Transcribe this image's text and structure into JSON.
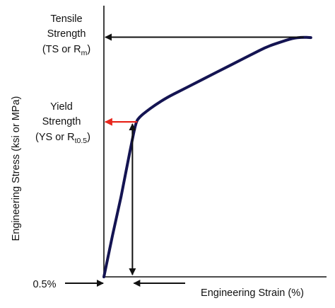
{
  "chart_data": {
    "type": "line",
    "title": "",
    "xlabel": "Engineering Strain (%)",
    "ylabel": "Engineering Stress (ksi or MPa)",
    "grid": false,
    "legend": "none",
    "colors": {
      "curve": "#141452",
      "axis": "#111111",
      "yield_arrow": "#e8281e",
      "tensile_arrow": "#111111",
      "offset_arrows": "#111111"
    },
    "series": [
      {
        "values": [
          [
            0.0,
            0.0
          ],
          [
            0.3,
            0.17
          ],
          [
            0.6,
            0.33
          ],
          [
            0.9,
            0.51
          ],
          [
            1.12,
            0.64
          ],
          [
            1.25,
            0.66
          ],
          [
            1.45,
            0.68
          ],
          [
            1.8,
            0.71
          ],
          [
            2.2,
            0.74
          ],
          [
            2.7,
            0.77
          ],
          [
            3.2,
            0.8
          ],
          [
            3.7,
            0.83
          ],
          [
            4.2,
            0.86
          ],
          [
            4.7,
            0.89
          ],
          [
            5.2,
            0.92
          ],
          [
            5.7,
            0.95
          ],
          [
            6.2,
            0.97
          ],
          [
            6.6,
            0.985
          ],
          [
            6.95,
            0.99
          ],
          [
            7.25,
            0.988
          ]
        ]
      }
    ],
    "xlim": [
      0,
      7.8
    ],
    "ylim": [
      0,
      1.12
    ],
    "offset_strain": 1.0,
    "yield_point": [
      1.12,
      0.64
    ],
    "tensile_point": [
      7.0,
      0.99
    ],
    "annotations": {
      "tensile": {
        "lines": [
          "Tensile",
          "Strength"
        ],
        "paren_open": "(TS or R",
        "sub": "m",
        "paren_close": ")"
      },
      "yield": {
        "lines": [
          "Yield",
          "Strength"
        ],
        "paren_open": "(YS or R",
        "sub": "t0.5",
        "paren_close": ")"
      },
      "offset_label": "0.5%"
    }
  }
}
